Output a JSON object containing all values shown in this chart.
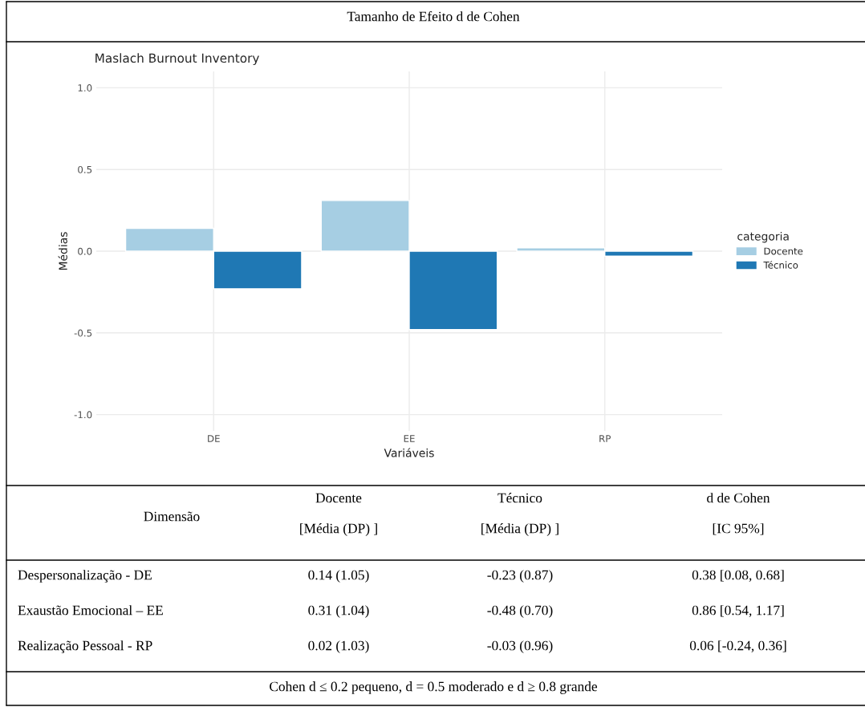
{
  "chart_data": {
    "type": "bar",
    "title": "Maslach Burnout Inventory",
    "categories": [
      "DE",
      "EE",
      "RP"
    ],
    "xlabel": "Variáveis",
    "ylabel": "Médias",
    "legend_title": "categoria",
    "series": [
      {
        "name": "Docente",
        "color": "#a6cee3",
        "values": [
          0.14,
          0.31,
          0.02
        ]
      },
      {
        "name": "Técnico",
        "color": "#1f78b4",
        "values": [
          -0.23,
          -0.48,
          -0.03
        ]
      }
    ],
    "ylim": [
      -1.1,
      1.1
    ],
    "yticks": [
      {
        "value": -1.0,
        "label": "-1.0"
      },
      {
        "value": -0.5,
        "label": "-0.5"
      },
      {
        "value": 0.0,
        "label": "0.0"
      },
      {
        "value": 0.5,
        "label": "0.5"
      },
      {
        "value": 1.0,
        "label": "1.0"
      }
    ],
    "grid": true,
    "legend": "right",
    "annotations": [
      "Tamanho de Efeito d de Cohen",
      "Dimensão",
      "Docente",
      "[Média (DP) ]",
      "Técnico",
      "[Média (DP) ]",
      "d de Cohen",
      "[IC 95%]",
      "Despersonalização - DE",
      "0.14 (1.05)",
      "-0.23 (0.87)",
      "0.38 [0.08, 0.68]",
      "Exaustão Emocional – EE",
      "0.31 (1.04)",
      "-0.48 (0.70)",
      "0.86 [0.54, 1.17]",
      "Realização Pessoal - RP",
      "0.02 (1.03)",
      "-0.03 (0.96)",
      "0.06 [-0.24, 0.36]",
      "Cohen d ≤ 0.2 pequeno, d = 0.5 moderado e d ≥ 0.8 grande"
    ]
  }
}
